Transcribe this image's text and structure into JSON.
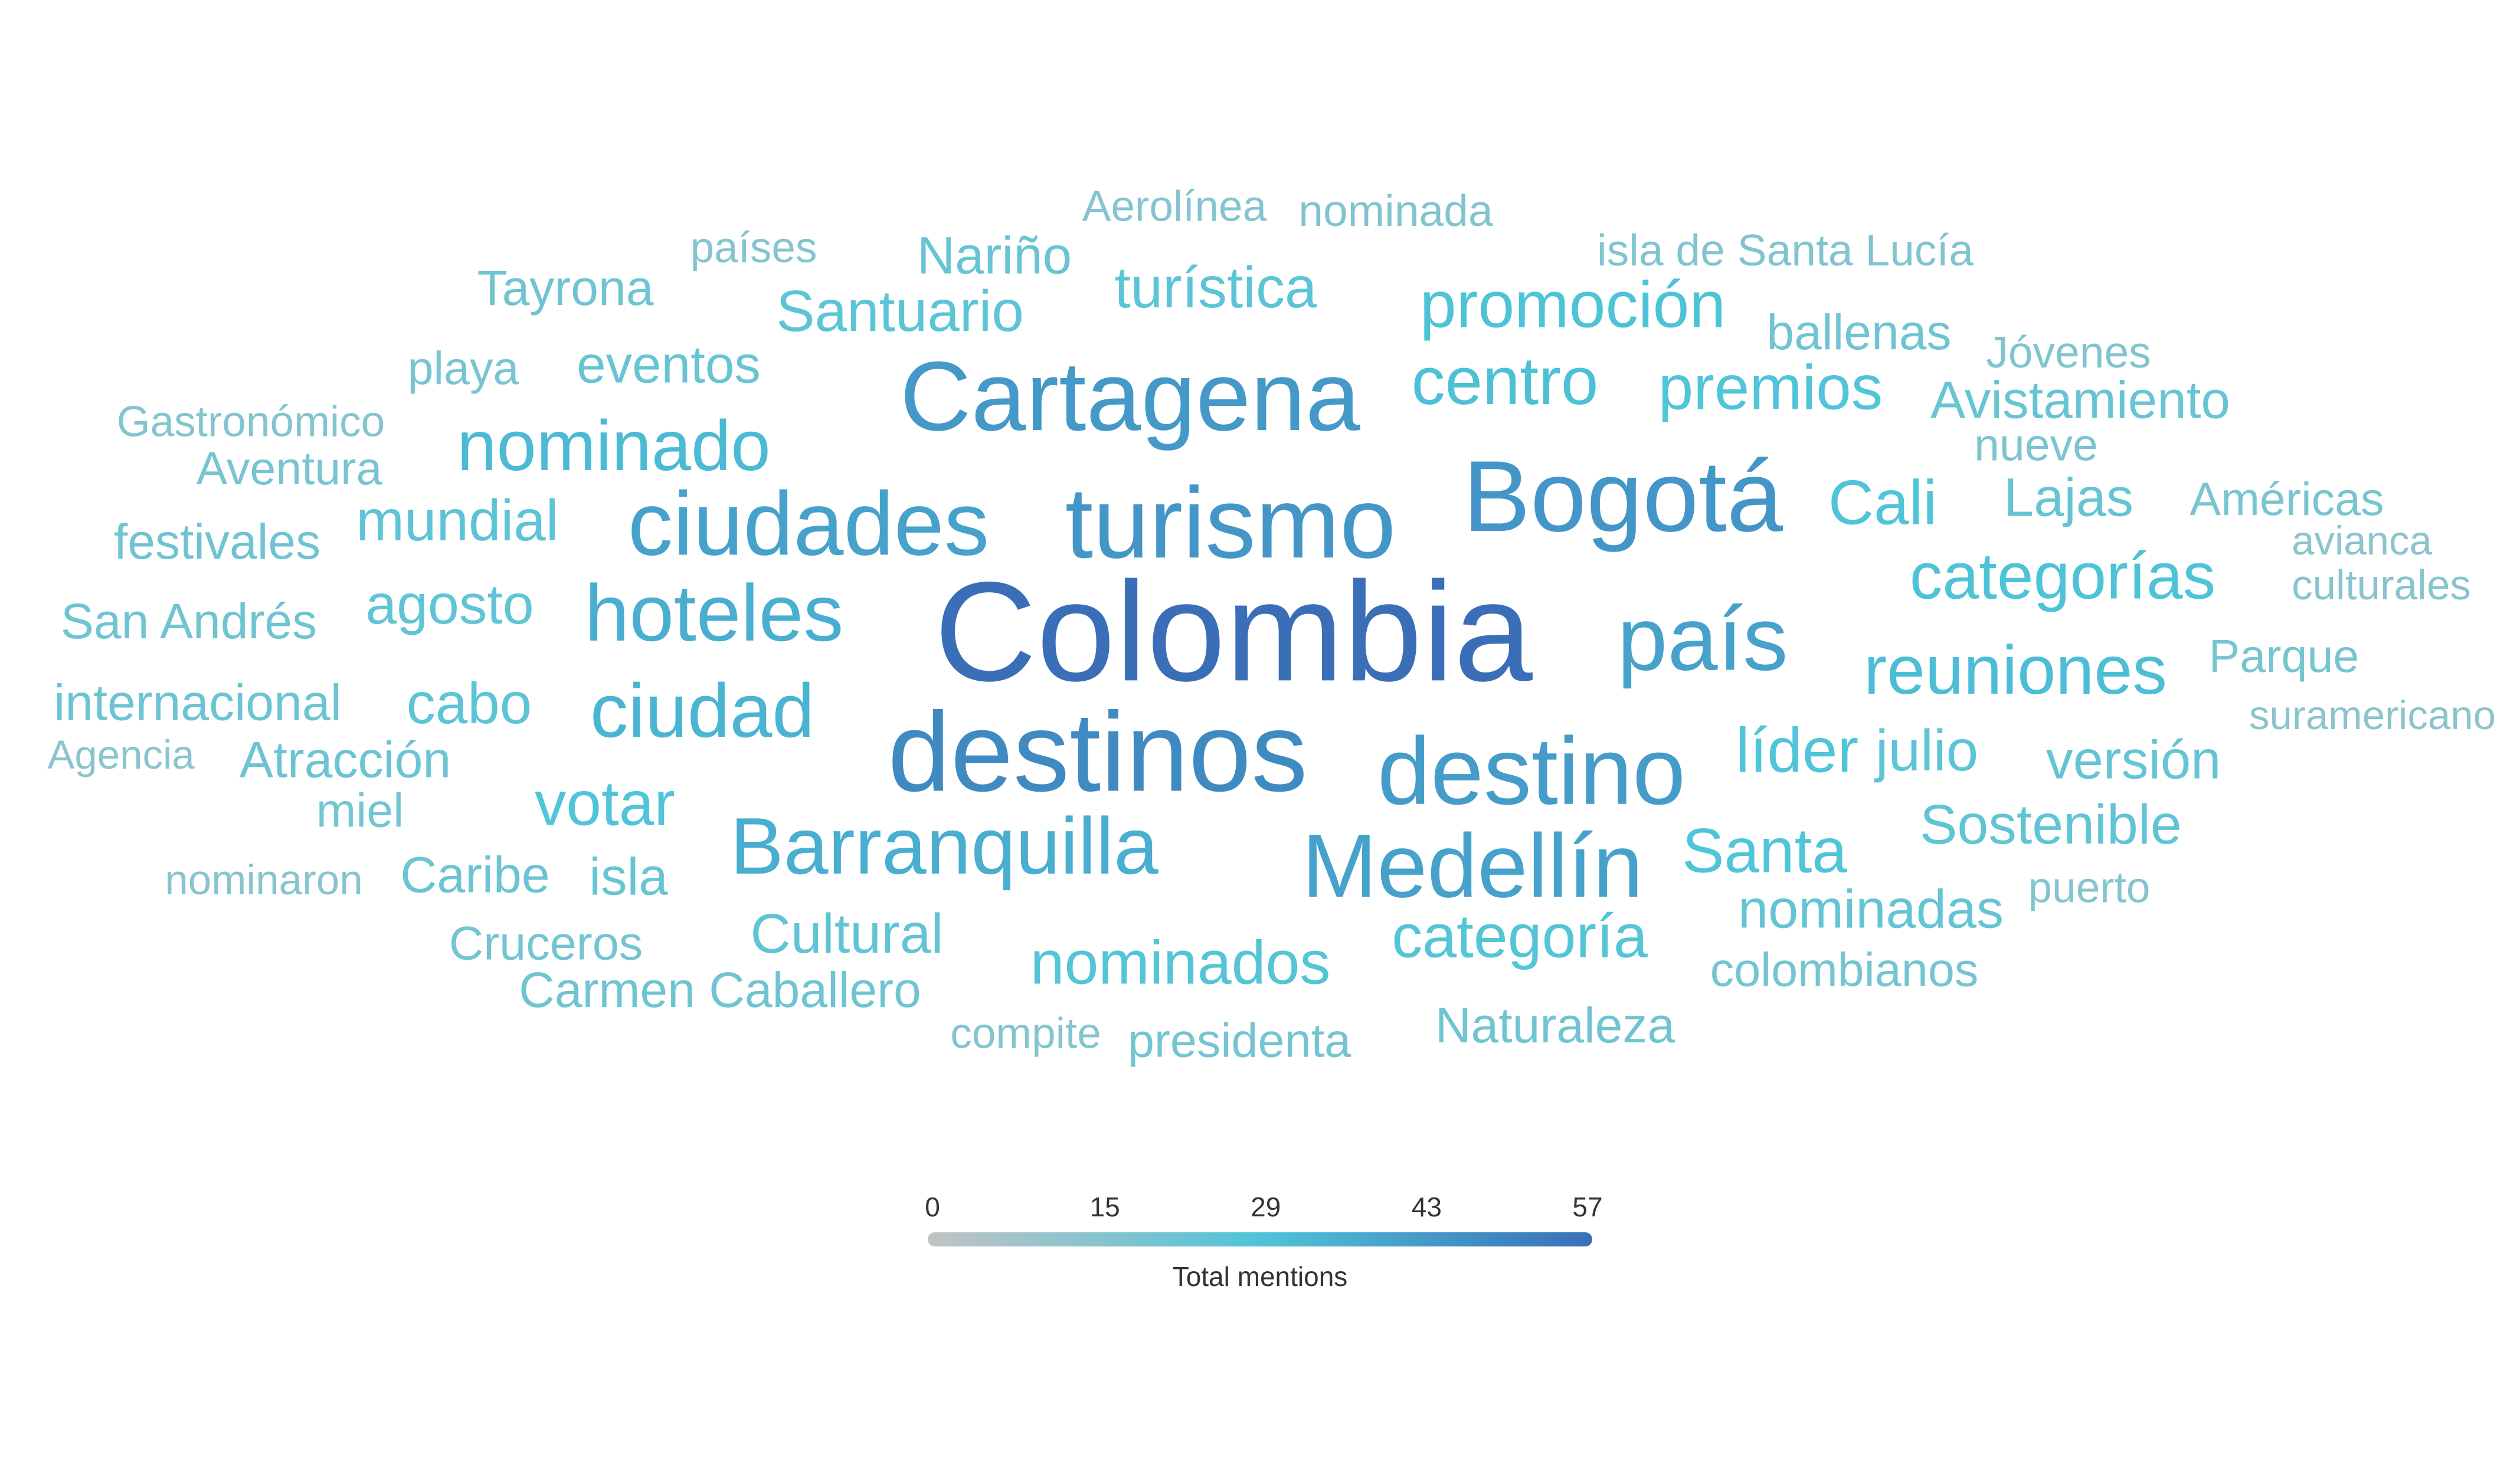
{
  "chart_data": {
    "type": "wordcloud",
    "metric": "Total mentions",
    "color_scale": {
      "min": 0,
      "max": 57,
      "ticks": [
        0,
        15,
        29,
        43,
        57
      ],
      "stops": [
        "#bfc4c4",
        "#4ec4d8",
        "#3a6fb8"
      ]
    },
    "words": [
      {
        "text": "Colombia",
        "value": 57
      },
      {
        "text": "destinos",
        "value": 48
      },
      {
        "text": "turismo",
        "value": 44
      },
      {
        "text": "Bogotá",
        "value": 44
      },
      {
        "text": "Cartagena",
        "value": 43
      },
      {
        "text": "destino",
        "value": 42
      },
      {
        "text": "ciudades",
        "value": 40
      },
      {
        "text": "Medellín",
        "value": 40
      },
      {
        "text": "país",
        "value": 40
      },
      {
        "text": "hoteles",
        "value": 36
      },
      {
        "text": "Barranquilla",
        "value": 36
      },
      {
        "text": "ciudad",
        "value": 34
      },
      {
        "text": "nominado",
        "value": 32
      },
      {
        "text": "reuniones",
        "value": 31
      },
      {
        "text": "centro",
        "value": 30
      },
      {
        "text": "promoción",
        "value": 29
      },
      {
        "text": "categorías",
        "value": 29
      },
      {
        "text": "premios",
        "value": 28
      },
      {
        "text": "votar",
        "value": 28
      },
      {
        "text": "líder",
        "value": 28
      },
      {
        "text": "Cali",
        "value": 28
      },
      {
        "text": "Santa",
        "value": 28
      },
      {
        "text": "categoría",
        "value": 27
      },
      {
        "text": "nominados",
        "value": 27
      },
      {
        "text": "mundial",
        "value": 25
      },
      {
        "text": "turística",
        "value": 25
      },
      {
        "text": "Santuario",
        "value": 25
      },
      {
        "text": "julio",
        "value": 25
      },
      {
        "text": "Cultural",
        "value": 24
      },
      {
        "text": "cabo",
        "value": 25
      },
      {
        "text": "agosto",
        "value": 24
      },
      {
        "text": "Sostenible",
        "value": 24
      },
      {
        "text": "Lajas",
        "value": 23
      },
      {
        "text": "nominadas",
        "value": 23
      },
      {
        "text": "versión",
        "value": 23
      },
      {
        "text": "Nariño",
        "value": 22
      },
      {
        "text": "eventos",
        "value": 22
      },
      {
        "text": "Avistamiento",
        "value": 22
      },
      {
        "text": "isla",
        "value": 22
      },
      {
        "text": "Caribe",
        "value": 21
      },
      {
        "text": "Atracción",
        "value": 21
      },
      {
        "text": "internacional",
        "value": 21
      },
      {
        "text": "San Andrés",
        "value": 20
      },
      {
        "text": "ballenas",
        "value": 20
      },
      {
        "text": "Tayrona",
        "value": 20
      },
      {
        "text": "festivales",
        "value": 20
      },
      {
        "text": "Carmen Caballero",
        "value": 20
      },
      {
        "text": "Naturaleza",
        "value": 20
      },
      {
        "text": "presidenta",
        "value": 19
      },
      {
        "text": "colombianos",
        "value": 19
      },
      {
        "text": "Cruceros",
        "value": 19
      },
      {
        "text": "miel",
        "value": 19
      },
      {
        "text": "Parque",
        "value": 18
      },
      {
        "text": "Aventura",
        "value": 18
      },
      {
        "text": "playa",
        "value": 18
      },
      {
        "text": "Américas",
        "value": 18
      },
      {
        "text": "nueve",
        "value": 17
      },
      {
        "text": "isla de Santa Lucía",
        "value": 16
      },
      {
        "text": "nominada",
        "value": 16
      },
      {
        "text": "Jóvenes",
        "value": 16
      },
      {
        "text": "Aerolínea",
        "value": 15
      },
      {
        "text": "países",
        "value": 15
      },
      {
        "text": "Gastronómico",
        "value": 15
      },
      {
        "text": "compite",
        "value": 15
      },
      {
        "text": "puerto",
        "value": 15
      },
      {
        "text": "culturales",
        "value": 14
      },
      {
        "text": "nominaron",
        "value": 14
      },
      {
        "text": "avianca",
        "value": 13
      },
      {
        "text": "suramericano",
        "value": 13
      },
      {
        "text": "Agencia",
        "value": 13
      }
    ]
  }
}
